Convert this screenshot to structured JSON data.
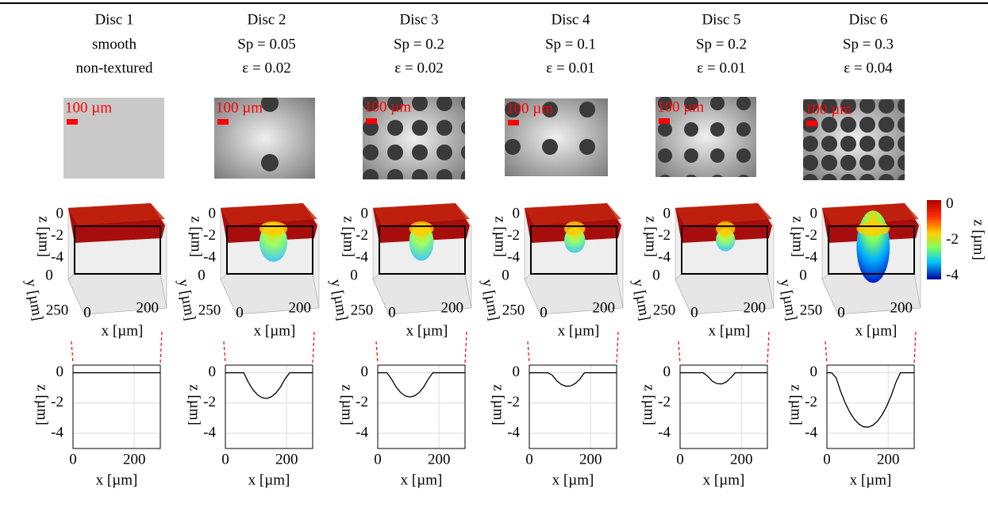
{
  "columns": [
    {
      "title": "Disc 1",
      "params": [
        "smooth",
        "non-textured"
      ],
      "scale_bar": "100 µm"
    },
    {
      "title": "Disc 2",
      "params": [
        "Sp = 0.05",
        "ε = 0.02"
      ],
      "scale_bar": "100 µm"
    },
    {
      "title": "Disc 3",
      "params": [
        "Sp = 0.2",
        "ε = 0.02"
      ],
      "scale_bar": "100 µm"
    },
    {
      "title": "Disc 4",
      "params": [
        "Sp = 0.1",
        "ε = 0.01"
      ],
      "scale_bar": "100 µm"
    },
    {
      "title": "Disc 5",
      "params": [
        "Sp = 0.2",
        "ε = 0.01"
      ],
      "scale_bar": "100 µm"
    },
    {
      "title": "Disc 6",
      "params": [
        "Sp = 0.3",
        "ε = 0.04"
      ],
      "scale_bar": "100 µm"
    }
  ],
  "surface_axes": {
    "zlabel": "z [µm]",
    "ylabel": "y [µm]",
    "xlabel": "x [µm]",
    "zlim": [
      -5,
      0.5
    ],
    "zticks": [
      0,
      -2,
      -4
    ],
    "ylim": [
      0,
      300
    ],
    "yticks": [
      0,
      250
    ],
    "xlim": [
      0,
      285
    ],
    "xticks": [
      0,
      200
    ]
  },
  "colorbar": {
    "lim": [
      -4.2,
      0.25
    ],
    "ticks": [
      0,
      -2,
      -4
    ],
    "label": "z [µm]"
  },
  "chart_data": [
    {
      "type": "line",
      "xlabel": "x [µm]",
      "ylabel": "z [µm]",
      "x": [
        0,
        15,
        30,
        45,
        60,
        75,
        90,
        105,
        120,
        135,
        150,
        165,
        180,
        195,
        210,
        225,
        240,
        255,
        270,
        285
      ],
      "series": [
        {
          "color": "#000000",
          "values": [
            0,
            0,
            0,
            0,
            0,
            0,
            0,
            0,
            0,
            0,
            0,
            0,
            0,
            0,
            0,
            0,
            0,
            0,
            0,
            0
          ]
        }
      ],
      "xlim": [
        0,
        285
      ],
      "ylim": [
        -5,
        0.5
      ],
      "xticks": [
        0,
        200
      ],
      "yticks": [
        0,
        -2,
        -4
      ],
      "grid": true
    },
    {
      "type": "line",
      "xlabel": "x [µm]",
      "ylabel": "z [µm]",
      "x": [
        0,
        15,
        30,
        45,
        60,
        75,
        90,
        105,
        120,
        135,
        150,
        165,
        180,
        195,
        210,
        225,
        240,
        255,
        270,
        285
      ],
      "series": [
        {
          "color": "#000000",
          "values": [
            0,
            0,
            0,
            0,
            0,
            -0.63,
            -1.12,
            -1.46,
            -1.65,
            -1.7,
            -1.59,
            -1.34,
            -0.94,
            -0.4,
            0,
            0,
            0,
            0,
            0,
            0
          ]
        }
      ],
      "xlim": [
        0,
        285
      ],
      "ylim": [
        -5,
        0.5
      ],
      "xticks": [
        0,
        200
      ],
      "yticks": [
        0,
        -2,
        -4
      ],
      "grid": true
    },
    {
      "type": "line",
      "xlabel": "x [µm]",
      "ylabel": "z [µm]",
      "x": [
        0,
        15,
        30,
        45,
        60,
        75,
        90,
        105,
        120,
        135,
        150,
        165,
        180,
        195,
        210,
        225,
        240,
        255,
        270,
        285
      ],
      "series": [
        {
          "color": "#000000",
          "values": [
            0,
            0,
            0,
            -0.42,
            -0.94,
            -1.31,
            -1.53,
            -1.6,
            -1.53,
            -1.31,
            -0.94,
            -0.42,
            0,
            0,
            0,
            0,
            0,
            0,
            0,
            0
          ]
        }
      ],
      "xlim": [
        0,
        285
      ],
      "ylim": [
        -5,
        0.5
      ],
      "xticks": [
        0,
        200
      ],
      "yticks": [
        0,
        -2,
        -4
      ],
      "grid": true
    },
    {
      "type": "line",
      "xlabel": "x [µm]",
      "ylabel": "z [µm]",
      "x": [
        0,
        15,
        30,
        45,
        60,
        75,
        90,
        105,
        120,
        135,
        150,
        165,
        180,
        195,
        210,
        225,
        240,
        255,
        270,
        285
      ],
      "series": [
        {
          "color": "#000000",
          "values": [
            0,
            0,
            0,
            0,
            0,
            -0.16,
            -0.54,
            -0.78,
            -0.89,
            -0.87,
            -0.71,
            -0.42,
            0,
            0,
            0,
            0,
            0,
            0,
            0,
            0
          ]
        }
      ],
      "xlim": [
        0,
        285
      ],
      "ylim": [
        -5,
        0.5
      ],
      "xticks": [
        0,
        200
      ],
      "yticks": [
        0,
        -2,
        -4
      ],
      "grid": true
    },
    {
      "type": "line",
      "xlabel": "x [µm]",
      "ylabel": "z [µm]",
      "x": [
        0,
        15,
        30,
        45,
        60,
        75,
        90,
        105,
        120,
        135,
        150,
        165,
        180,
        195,
        210,
        225,
        240,
        255,
        270,
        285
      ],
      "series": [
        {
          "color": "#000000",
          "values": [
            0,
            0,
            0,
            0,
            0,
            0,
            -0.23,
            -0.55,
            -0.72,
            -0.74,
            -0.62,
            -0.35,
            0,
            0,
            0,
            0,
            0,
            0,
            0,
            0
          ]
        }
      ],
      "xlim": [
        0,
        285
      ],
      "ylim": [
        -5,
        0.5
      ],
      "xticks": [
        0,
        200
      ],
      "yticks": [
        0,
        -2,
        -4
      ],
      "grid": true
    },
    {
      "type": "line",
      "xlabel": "x [µm]",
      "ylabel": "z [µm]",
      "x": [
        0,
        15,
        30,
        45,
        60,
        75,
        90,
        105,
        120,
        135,
        150,
        165,
        180,
        195,
        210,
        225,
        240,
        255,
        270,
        285
      ],
      "series": [
        {
          "color": "#000000",
          "values": [
            0,
            0,
            -0.33,
            -1.24,
            -2.0,
            -2.61,
            -3.08,
            -3.4,
            -3.57,
            -3.59,
            -3.47,
            -3.2,
            -2.78,
            -2.22,
            -1.51,
            -0.65,
            0,
            0,
            0,
            0
          ]
        }
      ],
      "xlim": [
        0,
        285
      ],
      "ylim": [
        -5,
        0.5
      ],
      "xticks": [
        0,
        200
      ],
      "yticks": [
        0,
        -2,
        -4
      ],
      "grid": true
    }
  ]
}
